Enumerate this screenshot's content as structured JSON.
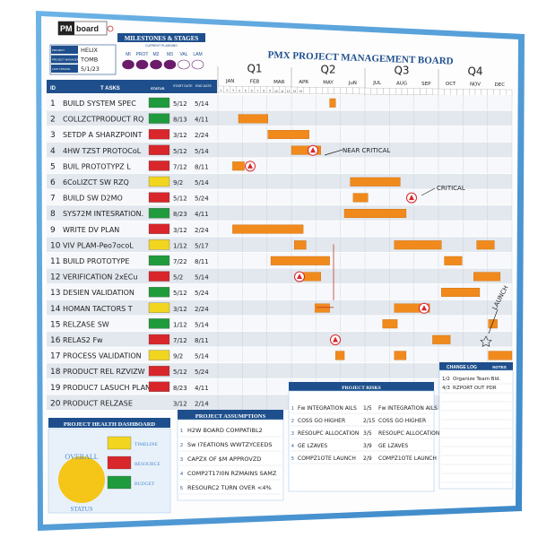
{
  "header": {
    "logo_text": "PM",
    "logo_text2": "board",
    "info_rows": [
      {
        "label": "PROJECT",
        "value": "HELIX"
      },
      {
        "label": "PROJECT MANAGER",
        "value": "TOMB"
      },
      {
        "label": "LAST UPDATE",
        "value": "5/1/23"
      }
    ],
    "milestones_title": "MILESTONES & STAGES",
    "milestones_sub": "CURRENT PLANNING",
    "milestone_labels": [
      "MI",
      "PROT",
      "M2",
      "M3",
      "VAL",
      "LAM"
    ],
    "board_title": "PMX PROJECT MANAGEMENT BOARD"
  },
  "quarters": [
    "Q1",
    "Q2",
    "Q3",
    "Q4"
  ],
  "months": [
    "JAN",
    "FEB",
    "MAR",
    "APR",
    "MAY",
    "JuN",
    "JUL",
    "AUG",
    "SEP",
    "OCT",
    "NOV",
    "DEC"
  ],
  "columns": {
    "id": "ID",
    "tasks": "T ASKS",
    "status": "STATUS",
    "start": "START DATE",
    "end": "END DATE"
  },
  "tasks": [
    {
      "id": "1",
      "name": "BUILD SYSTEM SPEC",
      "status": "green",
      "start": "5/12",
      "end": "5/14"
    },
    {
      "id": "2",
      "name": "COLLZCTPRODUCT RQ",
      "status": "green",
      "start": "8/13",
      "end": "4/11"
    },
    {
      "id": "3",
      "name": "SETDP A SHARZPOINT",
      "status": "red",
      "start": "3/12",
      "end": "2/24"
    },
    {
      "id": "4",
      "name": "4HW TZST PROTOCoL",
      "status": "red",
      "start": "5/12",
      "end": "5/14"
    },
    {
      "id": "5",
      "name": "BUIL PROTOTYPZ L",
      "status": "red",
      "start": "7/12",
      "end": "8/11"
    },
    {
      "id": "6",
      "name": "6CoLIZCT SW RZQ",
      "status": "yellow",
      "start": "9/2",
      "end": "5/14"
    },
    {
      "id": "7",
      "name": "BUILD SW D2MO",
      "status": "red",
      "start": "5/12",
      "end": "5/24"
    },
    {
      "id": "8",
      "name": "SYS72M INTESRATION.",
      "status": "green",
      "start": "8/23",
      "end": "4/11"
    },
    {
      "id": "9",
      "name": "WRITE DV PLAN",
      "status": "red",
      "start": "3/12",
      "end": "2/24"
    },
    {
      "id": "10",
      "name": "VIV PLAM-Peo7ocoL",
      "status": "yellow",
      "start": "1/12",
      "end": "5/17"
    },
    {
      "id": "11",
      "name": "BUILD PROTOTYPE",
      "status": "green",
      "start": "7/22",
      "end": "8/11"
    },
    {
      "id": "12",
      "name": "VERIFICATION 2xECu",
      "status": "red",
      "start": "5/2",
      "end": "5/14"
    },
    {
      "id": "13",
      "name": "DESIEN VALIDATION",
      "status": "green",
      "start": "5/12",
      "end": "5/24"
    },
    {
      "id": "14",
      "name": "HOMAN TACTORS T",
      "status": "yellow",
      "start": "3/12",
      "end": "2/24"
    },
    {
      "id": "15",
      "name": "RELZASE SW",
      "status": "green",
      "start": "1/12",
      "end": "5/14"
    },
    {
      "id": "16",
      "name": "RELAS2 Fw",
      "status": "red",
      "start": "7/12",
      "end": "8/11"
    },
    {
      "id": "17",
      "name": "PROCESS VALIDATION",
      "status": "yellow",
      "start": "9/2",
      "end": "5/14"
    },
    {
      "id": "18",
      "name": "PRODUCT REL RZVIZW",
      "status": "red",
      "start": "5/12",
      "end": "5/24"
    },
    {
      "id": "19",
      "name": "PRODUC7 LASUCH PLAN",
      "status": "red",
      "start": "8/23",
      "end": "4/11"
    },
    {
      "id": "20",
      "name": "PRODUCT RELZASE",
      "status": "",
      "start": "3/12",
      "end": "2/14"
    }
  ],
  "annotations": {
    "near_critical": "NEAR CRITICAL",
    "critical": "CRITICAL",
    "launch": "LAUNCH"
  },
  "health": {
    "title": "PROJECT HEALTH DASHBOARD",
    "overall_label": "OVERALL",
    "status_label": "STATUS",
    "items": [
      {
        "label": "TIMELINE",
        "color": "#f2d51e"
      },
      {
        "label": "RESOURCE",
        "color": "#d8262b"
      },
      {
        "label": "BUDGET",
        "color": "#1f9a3c"
      }
    ],
    "overall_color": "#f5c518"
  },
  "assumptions": {
    "title": "PROJECT ASSUMPTIONS",
    "items": [
      "H2W BOARD COMPATIBL2",
      "Sw I7EATIONS WWTZYCEEDS",
      "CAPZX OF $M APPROVZD",
      "COMP2T17I0N RZMAINS SAMZ",
      "RESOURC2 TURN OVER <4%"
    ]
  },
  "risks": {
    "title": "PROJECT RISKS",
    "items": [
      {
        "risk": "Fw INTEGRATION AILS",
        "date": "1/5",
        "mitigation": "Fw INTEGRATION AILS"
      },
      {
        "risk": "COSS GO HIGHER",
        "date": "2/15",
        "mitigation": "COSS GO HIGHER"
      },
      {
        "risk": "RESOUPC ALLOCATION",
        "date": "3/5",
        "mitigation": "RESOUPC ALLOCATION"
      },
      {
        "risk": "GE LZAVES",
        "date": "3/9",
        "mitigation": "GE LZAVES"
      },
      {
        "risk": "COMPZ1OTE LAUNCH",
        "date": "2/9",
        "mitigation": "COMPZ1OTE LAUNCH"
      }
    ]
  },
  "change_log": {
    "title": "CHANGE LOG",
    "notes_title": "NOTES",
    "items": [
      {
        "date": "1/2",
        "text": "Organize Team Bld."
      },
      {
        "date": "4/3",
        "text": "RZPORT OUT PDR"
      }
    ]
  },
  "colors": {
    "frame": "#4a9ad6",
    "navy": "#1e4f8c",
    "bar": "#f08a1c",
    "row_alt": "#e3e8ef"
  }
}
